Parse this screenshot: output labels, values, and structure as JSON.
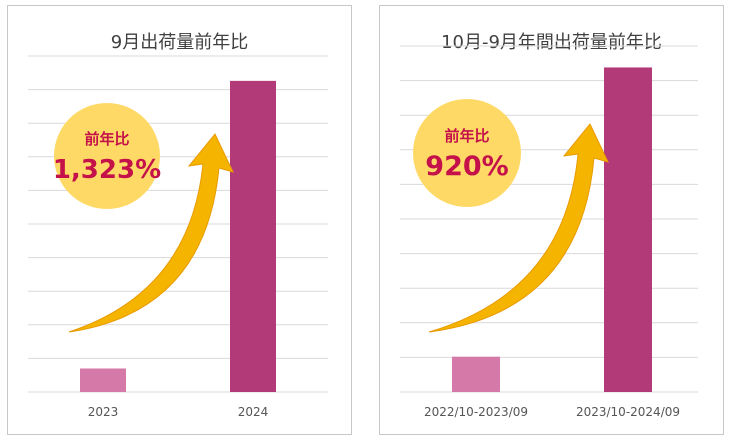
{
  "colors": {
    "bar_prev": "#d57aa8",
    "bar_curr": "#b23a78",
    "grid": "#d9d9d9",
    "arrow": "#f5b400",
    "badge_fill": "#ffd966",
    "badge_text": "#c4114a"
  },
  "chart_data": [
    {
      "type": "bar",
      "title": "9月出荷量前年比",
      "categories": [
        "2023",
        "2024"
      ],
      "values": [
        7.0,
        92.6
      ],
      "ylim": [
        0,
        100
      ],
      "grid": true,
      "annotation": {
        "label": "前年比",
        "value": "1,323%"
      }
    },
    {
      "type": "bar",
      "title": "10月-9月年間出荷量前年比",
      "categories": [
        "2022/10-2023/09",
        "2023/10-2024/09"
      ],
      "values": [
        10.2,
        93.8
      ],
      "ylim": [
        0,
        100
      ],
      "grid": true,
      "annotation": {
        "label": "前年比",
        "value": "920%"
      }
    }
  ]
}
